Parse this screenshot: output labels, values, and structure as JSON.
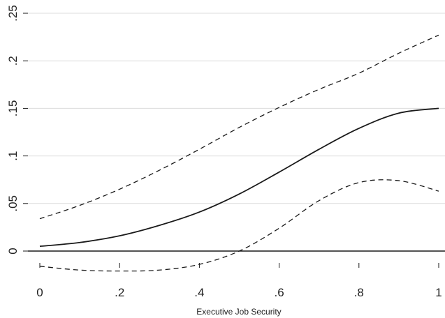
{
  "chart_data": {
    "type": "line",
    "title": "",
    "xlabel": "Executive Job Security",
    "ylabel": "",
    "xlim": [
      0,
      1
    ],
    "ylim": [
      -0.025,
      0.25
    ],
    "grid": true,
    "x_ticks": [
      {
        "value": 0,
        "label": "0"
      },
      {
        "value": 0.2,
        "label": ".2"
      },
      {
        "value": 0.4,
        "label": ".4"
      },
      {
        "value": 0.6,
        "label": ".6"
      },
      {
        "value": 0.8,
        "label": ".8"
      },
      {
        "value": 1,
        "label": "1"
      }
    ],
    "y_ticks": [
      {
        "value": 0,
        "label": "0"
      },
      {
        "value": 0.05,
        "label": ".05"
      },
      {
        "value": 0.1,
        "label": ".1"
      },
      {
        "value": 0.15,
        "label": ".15"
      },
      {
        "value": 0.2,
        "label": ".2"
      },
      {
        "value": 0.25,
        "label": ".25"
      }
    ],
    "reference_line_y": 0,
    "x": [
      0,
      0.1,
      0.2,
      0.3,
      0.4,
      0.5,
      0.6,
      0.7,
      0.8,
      0.9,
      1.0
    ],
    "series": [
      {
        "role": "estimate",
        "style": "solid",
        "values": [
          0.005,
          0.009,
          0.016,
          0.027,
          0.041,
          0.06,
          0.083,
          0.107,
          0.129,
          0.145,
          0.15
        ]
      },
      {
        "role": "upper",
        "style": "dashed",
        "values": [
          0.034,
          0.048,
          0.065,
          0.085,
          0.107,
          0.13,
          0.151,
          0.17,
          0.187,
          0.208,
          0.227
        ]
      },
      {
        "role": "lower",
        "style": "dashed",
        "values": [
          -0.016,
          -0.02,
          -0.021,
          -0.02,
          -0.014,
          0.0,
          0.024,
          0.053,
          0.072,
          0.074,
          0.063
        ]
      }
    ]
  }
}
